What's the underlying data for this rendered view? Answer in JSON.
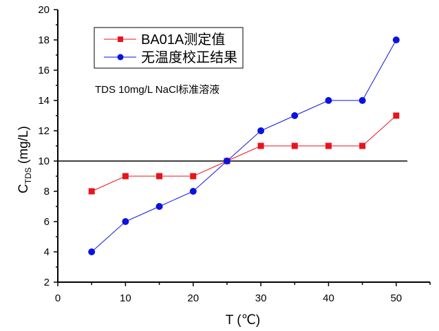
{
  "chart_data": {
    "type": "line",
    "title": "",
    "annotation": "TDS 10mg/L NaCl标准溶液",
    "xlabel": "T (℃)",
    "ylabel_main": "C",
    "ylabel_sub": "TDS",
    "ylabel_unit": " (mg/L)",
    "xlim": [
      0,
      55
    ],
    "ylim": [
      2,
      20
    ],
    "xticks": [
      0,
      10,
      20,
      30,
      40,
      50
    ],
    "yticks": [
      2,
      4,
      6,
      8,
      10,
      12,
      14,
      16,
      18,
      20
    ],
    "reference_line": 10,
    "legend_position": "top-left",
    "x": [
      5,
      10,
      15,
      20,
      25,
      30,
      35,
      40,
      45,
      50
    ],
    "series": [
      {
        "name": "BA01A测定值",
        "color": "#e8141c",
        "marker": "square",
        "values": [
          8,
          9,
          9,
          9,
          10,
          11,
          11,
          11,
          11,
          13
        ]
      },
      {
        "name": "无温度校正结果",
        "color": "#0a12e0",
        "marker": "circle",
        "values": [
          4,
          6,
          7,
          8,
          10,
          12,
          13,
          14,
          14,
          18
        ]
      }
    ]
  }
}
